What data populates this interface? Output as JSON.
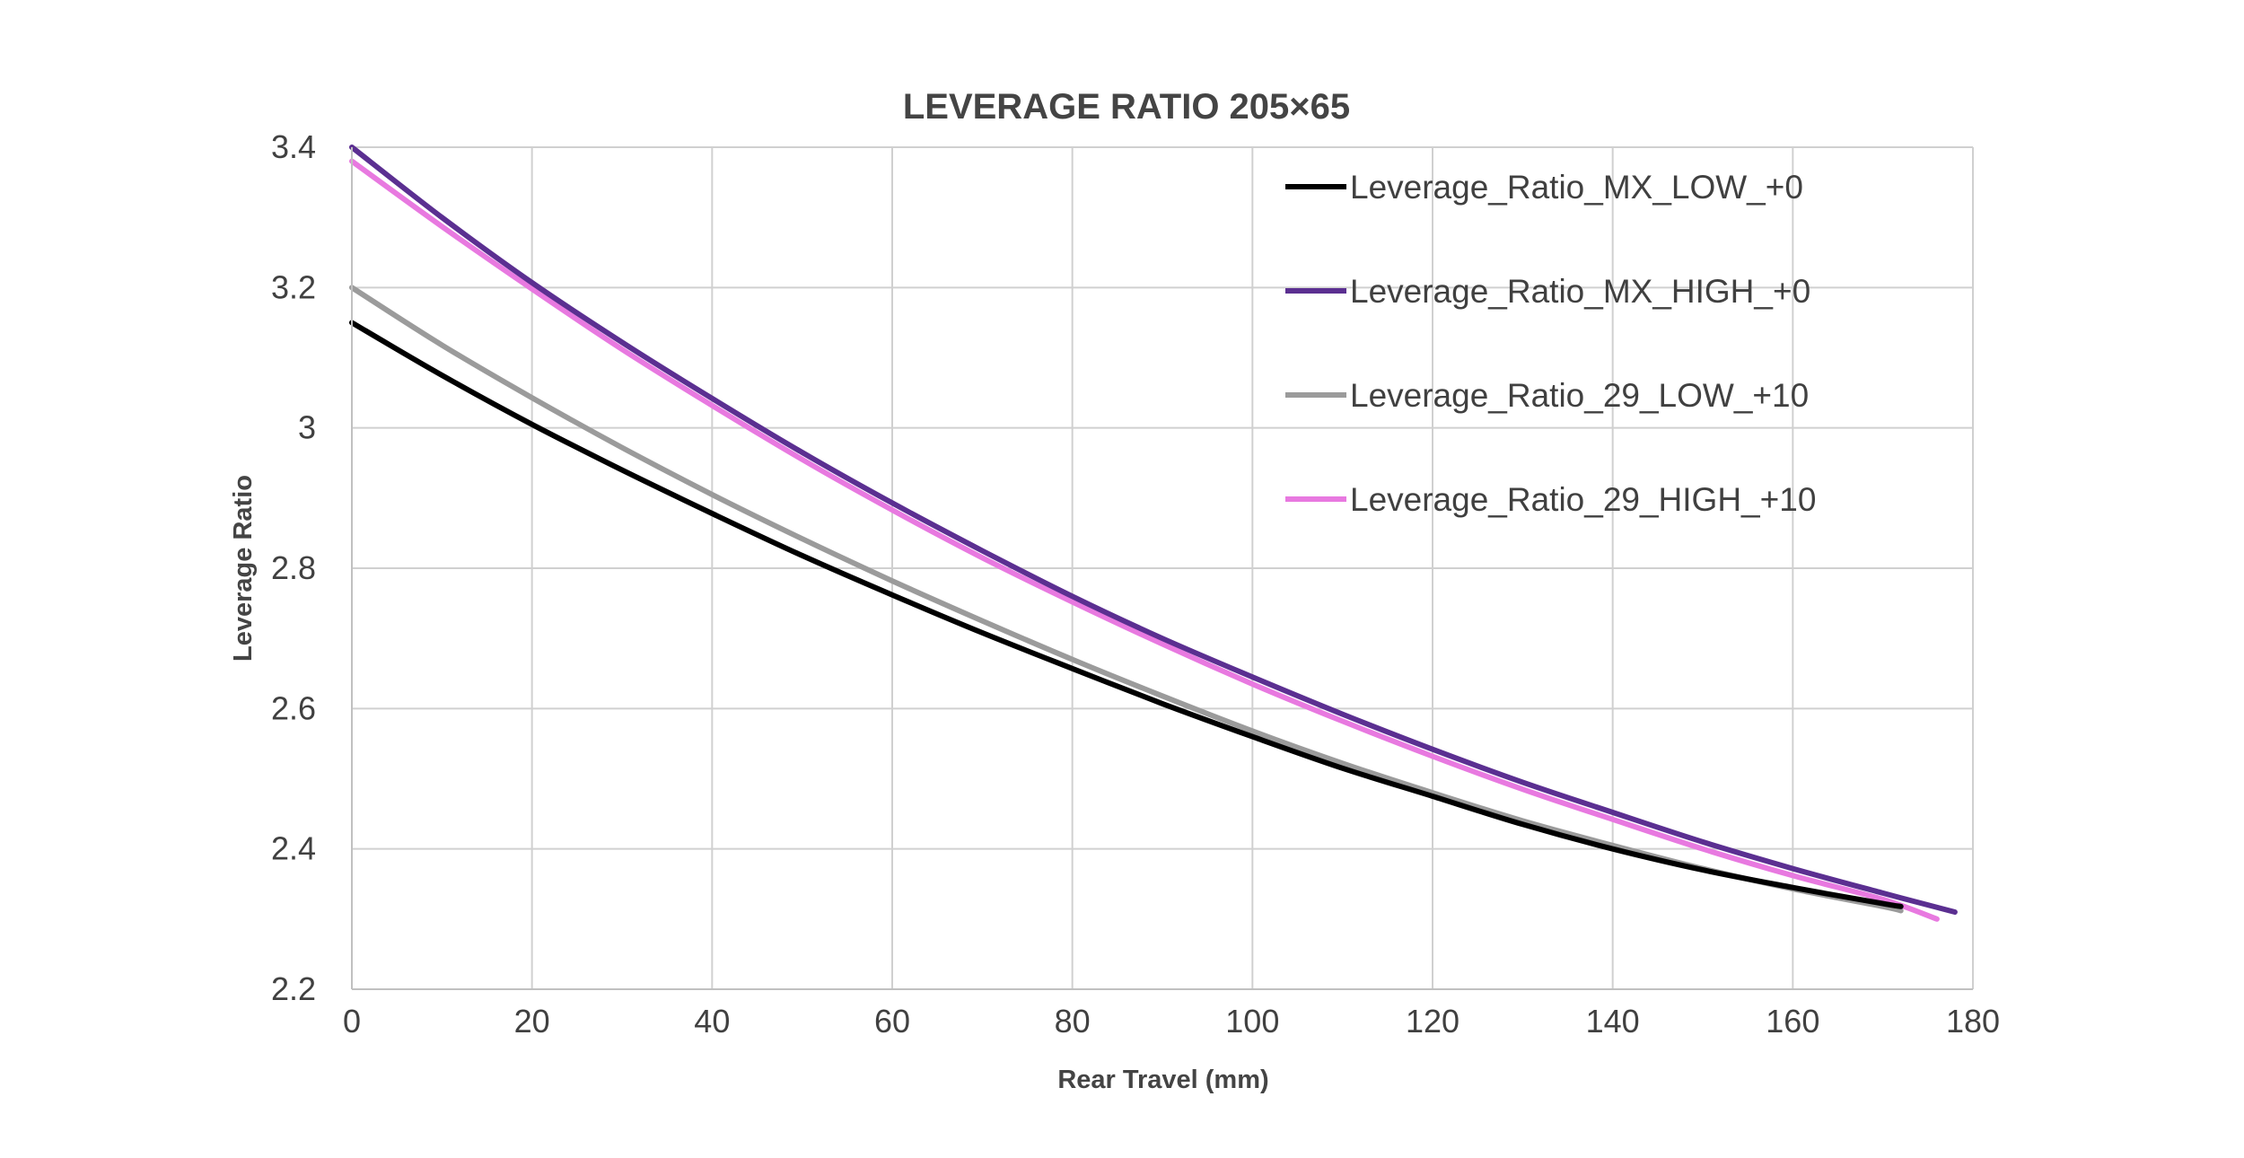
{
  "chart_data": {
    "type": "line",
    "title": "LEVERAGE RATIO 205×65",
    "xlabel": "Rear Travel (mm)",
    "ylabel": "Leverage Ratio",
    "xlim": [
      0,
      180
    ],
    "ylim": [
      2.2,
      3.4
    ],
    "x_ticks": [
      0,
      20,
      40,
      60,
      80,
      100,
      120,
      140,
      160,
      180
    ],
    "y_ticks": [
      2.2,
      2.4,
      2.6,
      2.8,
      3,
      3.2,
      3.4
    ],
    "x_tick_labels": [
      "0",
      "20",
      "40",
      "60",
      "80",
      "100",
      "120",
      "140",
      "160",
      "180"
    ],
    "y_tick_labels": [
      "2.2",
      "2.4",
      "2.6",
      "2.8",
      "3",
      "3.2",
      "3.4"
    ],
    "grid": true,
    "legend_position": "top-right",
    "series": [
      {
        "name": "Leverage_Ratio_MX_LOW_+0",
        "color": "#000000",
        "x": [
          0,
          10,
          20,
          30,
          40,
          50,
          60,
          70,
          80,
          90,
          100,
          110,
          120,
          130,
          140,
          150,
          160,
          170,
          172
        ],
        "y": [
          3.15,
          3.075,
          3.005,
          2.94,
          2.878,
          2.818,
          2.762,
          2.708,
          2.657,
          2.607,
          2.56,
          2.515,
          2.475,
          2.435,
          2.4,
          2.37,
          2.345,
          2.322,
          2.318
        ]
      },
      {
        "name": "Leverage_Ratio_MX_HIGH_+0",
        "color": "#5b2f91",
        "x": [
          0,
          10,
          20,
          30,
          40,
          50,
          60,
          70,
          80,
          90,
          100,
          110,
          120,
          130,
          140,
          150,
          160,
          170,
          178
        ],
        "y": [
          3.4,
          3.3,
          3.207,
          3.122,
          3.042,
          2.965,
          2.893,
          2.825,
          2.76,
          2.7,
          2.645,
          2.592,
          2.542,
          2.495,
          2.452,
          2.41,
          2.372,
          2.337,
          2.31
        ]
      },
      {
        "name": "Leverage_Ratio_29_LOW_+10",
        "color": "#9b9b9b",
        "x": [
          0,
          10,
          20,
          30,
          40,
          50,
          60,
          70,
          80,
          90,
          100,
          110,
          120,
          130,
          140,
          150,
          160,
          170,
          172
        ],
        "y": [
          3.2,
          3.118,
          3.043,
          2.972,
          2.905,
          2.842,
          2.782,
          2.725,
          2.67,
          2.618,
          2.568,
          2.522,
          2.48,
          2.44,
          2.405,
          2.372,
          2.343,
          2.318,
          2.312
        ]
      },
      {
        "name": "Leverage_Ratio_29_HIGH_+10",
        "color": "#e879e0",
        "x": [
          0,
          10,
          20,
          30,
          40,
          50,
          60,
          70,
          80,
          90,
          100,
          110,
          120,
          130,
          140,
          150,
          160,
          170,
          176
        ],
        "y": [
          3.38,
          3.287,
          3.198,
          3.112,
          3.032,
          2.955,
          2.883,
          2.815,
          2.752,
          2.692,
          2.635,
          2.582,
          2.532,
          2.485,
          2.442,
          2.4,
          2.362,
          2.328,
          2.3
        ]
      }
    ]
  }
}
